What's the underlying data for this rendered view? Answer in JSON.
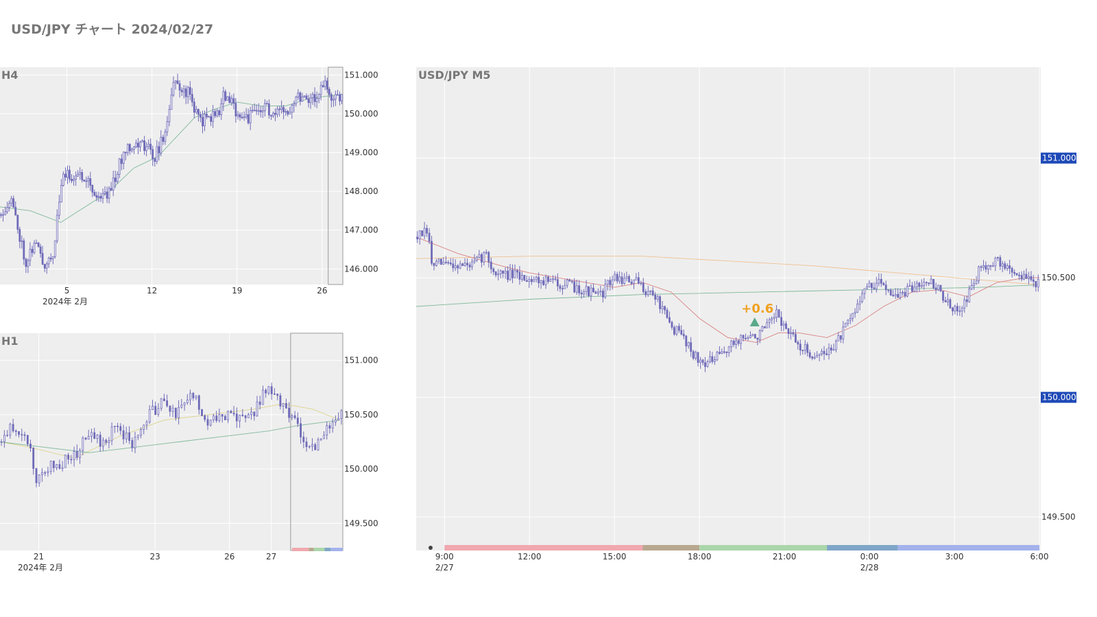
{
  "page_title": "USD/JPY チャート 2024/02/27",
  "colors": {
    "panel_bg": "#eeeeee",
    "grid": "#ffffff",
    "candle": "#6f6ab8",
    "ma_red": "#d98080",
    "ma_orange": "#f0c090",
    "ma_green": "#7fb89a",
    "ma_yellow": "#ddd48c",
    "price_tag_bg": "#1e49b7",
    "annotation": "#f0a020",
    "marker": "#5aaa8a"
  },
  "chart_data": [
    {
      "name": "h4",
      "type": "candlestick",
      "title": "H4",
      "ylim": [
        145.6,
        151.2
      ],
      "y_ticks": [
        "146.000",
        "147.000",
        "148.000",
        "149.000",
        "150.000",
        "151.000"
      ],
      "y_tick_values": [
        146,
        147,
        148,
        149,
        150,
        151
      ],
      "x_ticks": [
        "5",
        "12",
        "19",
        "26"
      ],
      "x_tick_positions_day": [
        5,
        12,
        19,
        26
      ],
      "x_sublabel": "2024年 2月",
      "x_range_day": [
        -0.5,
        27.7
      ],
      "highlight_day": [
        26.5,
        27.7
      ],
      "anchors": [
        [
          -0.5,
          147.4
        ],
        [
          0.5,
          147.8
        ],
        [
          1.7,
          146.2
        ],
        [
          2.5,
          146.7
        ],
        [
          3.2,
          146.1
        ],
        [
          4.1,
          146.5
        ],
        [
          4.3,
          147.5
        ],
        [
          4.8,
          148.4
        ],
        [
          6.8,
          148.4
        ],
        [
          7.3,
          147.9
        ],
        [
          8.3,
          147.9
        ],
        [
          9.1,
          148.4
        ],
        [
          10.0,
          149.2
        ],
        [
          11.5,
          149.2
        ],
        [
          12.3,
          148.9
        ],
        [
          13.2,
          149.5
        ],
        [
          13.8,
          150.8
        ],
        [
          15.2,
          150.5
        ],
        [
          16.0,
          149.8
        ],
        [
          17.5,
          150.0
        ],
        [
          18.0,
          150.5
        ],
        [
          19.2,
          150.0
        ],
        [
          20.0,
          149.9
        ],
        [
          21.5,
          150.2
        ],
        [
          22.0,
          149.9
        ],
        [
          23.5,
          150.2
        ],
        [
          24.0,
          150.5
        ],
        [
          25.5,
          150.4
        ],
        [
          26.3,
          150.8
        ],
        [
          26.8,
          150.3
        ],
        [
          27.6,
          150.5
        ]
      ],
      "ma_anchors": [
        [
          -0.5,
          147.6
        ],
        [
          2.0,
          147.5
        ],
        [
          4.5,
          147.2
        ],
        [
          6.5,
          147.6
        ],
        [
          8.5,
          148.0
        ],
        [
          10.5,
          148.6
        ],
        [
          12.5,
          148.9
        ],
        [
          14.0,
          149.4
        ],
        [
          15.5,
          149.9
        ],
        [
          17.0,
          150.1
        ],
        [
          19.0,
          150.3
        ],
        [
          21.0,
          150.2
        ],
        [
          23.0,
          150.2
        ],
        [
          25.0,
          150.4
        ],
        [
          27.6,
          150.5
        ]
      ]
    },
    {
      "name": "h1",
      "type": "candlestick",
      "title": "H1",
      "ylim": [
        149.25,
        151.25
      ],
      "y_ticks": [
        "149.500",
        "150.000",
        "150.500",
        "151.000"
      ],
      "y_tick_values": [
        149.5,
        150.0,
        150.5,
        151.0
      ],
      "x_ticks": [
        "21",
        "23",
        "26",
        "27"
      ],
      "x_tick_positions_h": [
        13,
        52,
        77,
        91
      ],
      "x_sublabel": "2024年 2月",
      "x_range_h": [
        0,
        115
      ],
      "highlight_h": [
        97.5,
        115
      ],
      "anchors": [
        [
          0,
          150.25
        ],
        [
          5,
          150.4
        ],
        [
          10,
          150.25
        ],
        [
          13,
          149.85
        ],
        [
          15,
          150.0
        ],
        [
          20,
          150.05
        ],
        [
          25,
          150.1
        ],
        [
          30,
          150.3
        ],
        [
          35,
          150.25
        ],
        [
          40,
          150.4
        ],
        [
          45,
          150.2
        ],
        [
          50,
          150.5
        ],
        [
          55,
          150.6
        ],
        [
          60,
          150.5
        ],
        [
          65,
          150.7
        ],
        [
          70,
          150.45
        ],
        [
          75,
          150.5
        ],
        [
          80,
          150.45
        ],
        [
          85,
          150.5
        ],
        [
          90,
          150.75
        ],
        [
          95,
          150.6
        ],
        [
          98,
          150.5
        ],
        [
          102,
          150.3
        ],
        [
          106,
          150.15
        ],
        [
          110,
          150.4
        ],
        [
          114,
          150.5
        ]
      ],
      "ma1_anchors": [
        [
          0,
          150.25
        ],
        [
          10,
          150.2
        ],
        [
          25,
          150.1
        ],
        [
          40,
          150.3
        ],
        [
          55,
          150.45
        ],
        [
          70,
          150.5
        ],
        [
          85,
          150.55
        ],
        [
          95,
          150.6
        ],
        [
          105,
          150.55
        ],
        [
          114,
          150.45
        ]
      ],
      "ma2_anchors": [
        [
          0,
          150.25
        ],
        [
          15,
          150.2
        ],
        [
          30,
          150.15
        ],
        [
          45,
          150.2
        ],
        [
          60,
          150.25
        ],
        [
          75,
          150.3
        ],
        [
          90,
          150.35
        ],
        [
          100,
          150.4
        ],
        [
          114,
          150.45
        ]
      ]
    },
    {
      "name": "m5",
      "type": "candlestick",
      "title": "USD/JPY M5",
      "ylim": [
        149.36,
        151.38
      ],
      "y_ticks": [
        "149.500",
        "150.500"
      ],
      "y_tick_values": [
        149.5,
        150.5
      ],
      "price_tags": [
        "151.000",
        "150.000"
      ],
      "price_tag_values": [
        151.0,
        150.0
      ],
      "x_ticks": [
        "9:00",
        "12:00",
        "15:00",
        "18:00",
        "21:00",
        "0:00",
        "3:00",
        "6:00"
      ],
      "x_tick_hours": [
        9,
        12,
        15,
        18,
        21,
        24,
        27,
        30
      ],
      "x_sublabels": [
        "2/27",
        "2/28"
      ],
      "x_sublabel_hours": [
        9,
        24
      ],
      "x_range_hours": [
        8.0,
        30.0
      ],
      "anchors": [
        [
          8.0,
          150.67
        ],
        [
          8.45,
          150.69
        ],
        [
          8.6,
          150.55
        ],
        [
          9.0,
          150.56
        ],
        [
          10.0,
          150.55
        ],
        [
          10.5,
          150.6
        ],
        [
          10.8,
          150.52
        ],
        [
          12.0,
          150.5
        ],
        [
          13.0,
          150.48
        ],
        [
          14.0,
          150.45
        ],
        [
          14.5,
          150.42
        ],
        [
          15.0,
          150.5
        ],
        [
          15.8,
          150.48
        ],
        [
          16.5,
          150.42
        ],
        [
          17.0,
          150.3
        ],
        [
          17.5,
          150.25
        ],
        [
          18.0,
          150.15
        ],
        [
          18.5,
          150.15
        ],
        [
          19.0,
          150.2
        ],
        [
          19.5,
          150.25
        ],
        [
          20.0,
          150.25
        ],
        [
          20.5,
          150.3
        ],
        [
          20.8,
          150.35
        ],
        [
          21.0,
          150.3
        ],
        [
          21.5,
          150.22
        ],
        [
          22.0,
          150.18
        ],
        [
          22.5,
          150.18
        ],
        [
          23.0,
          150.25
        ],
        [
          23.5,
          150.35
        ],
        [
          23.8,
          150.45
        ],
        [
          24.5,
          150.48
        ],
        [
          25.0,
          150.42
        ],
        [
          25.5,
          150.45
        ],
        [
          26.0,
          150.5
        ],
        [
          26.5,
          150.45
        ],
        [
          27.0,
          150.35
        ],
        [
          27.5,
          150.42
        ],
        [
          28.0,
          150.55
        ],
        [
          28.5,
          150.57
        ],
        [
          29.5,
          150.5
        ],
        [
          30.0,
          150.48
        ]
      ],
      "ma_red": [
        [
          8.0,
          150.67
        ],
        [
          9.5,
          150.6
        ],
        [
          11.0,
          150.55
        ],
        [
          12.0,
          150.52
        ],
        [
          13.5,
          150.49
        ],
        [
          15.0,
          150.46
        ],
        [
          16.0,
          150.48
        ],
        [
          17.0,
          150.44
        ],
        [
          18.0,
          150.33
        ],
        [
          19.0,
          150.25
        ],
        [
          20.0,
          150.23
        ],
        [
          20.8,
          150.27
        ],
        [
          21.5,
          150.27
        ],
        [
          22.5,
          150.25
        ],
        [
          23.5,
          150.3
        ],
        [
          24.5,
          150.38
        ],
        [
          25.5,
          150.44
        ],
        [
          26.5,
          150.45
        ],
        [
          27.5,
          150.42
        ],
        [
          28.5,
          150.48
        ],
        [
          29.5,
          150.5
        ],
        [
          30.0,
          150.5
        ]
      ],
      "ma_orange": [
        [
          8.0,
          150.58
        ],
        [
          12.0,
          150.59
        ],
        [
          16.0,
          150.59
        ],
        [
          19.0,
          150.57
        ],
        [
          22.0,
          150.55
        ],
        [
          25.0,
          150.52
        ],
        [
          28.0,
          150.49
        ],
        [
          30.0,
          150.47
        ]
      ],
      "ma_green": [
        [
          8.0,
          150.38
        ],
        [
          12.0,
          150.41
        ],
        [
          16.0,
          150.43
        ],
        [
          20.0,
          150.44
        ],
        [
          24.0,
          150.45
        ],
        [
          28.0,
          150.46
        ],
        [
          30.0,
          150.47
        ]
      ],
      "annotation": {
        "text": "+0.6",
        "hour": 19.95,
        "price": 150.32
      },
      "session_bar": [
        {
          "from": 9.0,
          "to": 16.0,
          "color": "#f0a8ae"
        },
        {
          "from": 16.0,
          "to": 18.0,
          "color": "#b8a890"
        },
        {
          "from": 18.0,
          "to": 22.5,
          "color": "#aad6aa"
        },
        {
          "from": 22.5,
          "to": 25.0,
          "color": "#7fa6c8"
        },
        {
          "from": 25.0,
          "to": 30.0,
          "color": "#a3b2ec"
        }
      ]
    }
  ]
}
